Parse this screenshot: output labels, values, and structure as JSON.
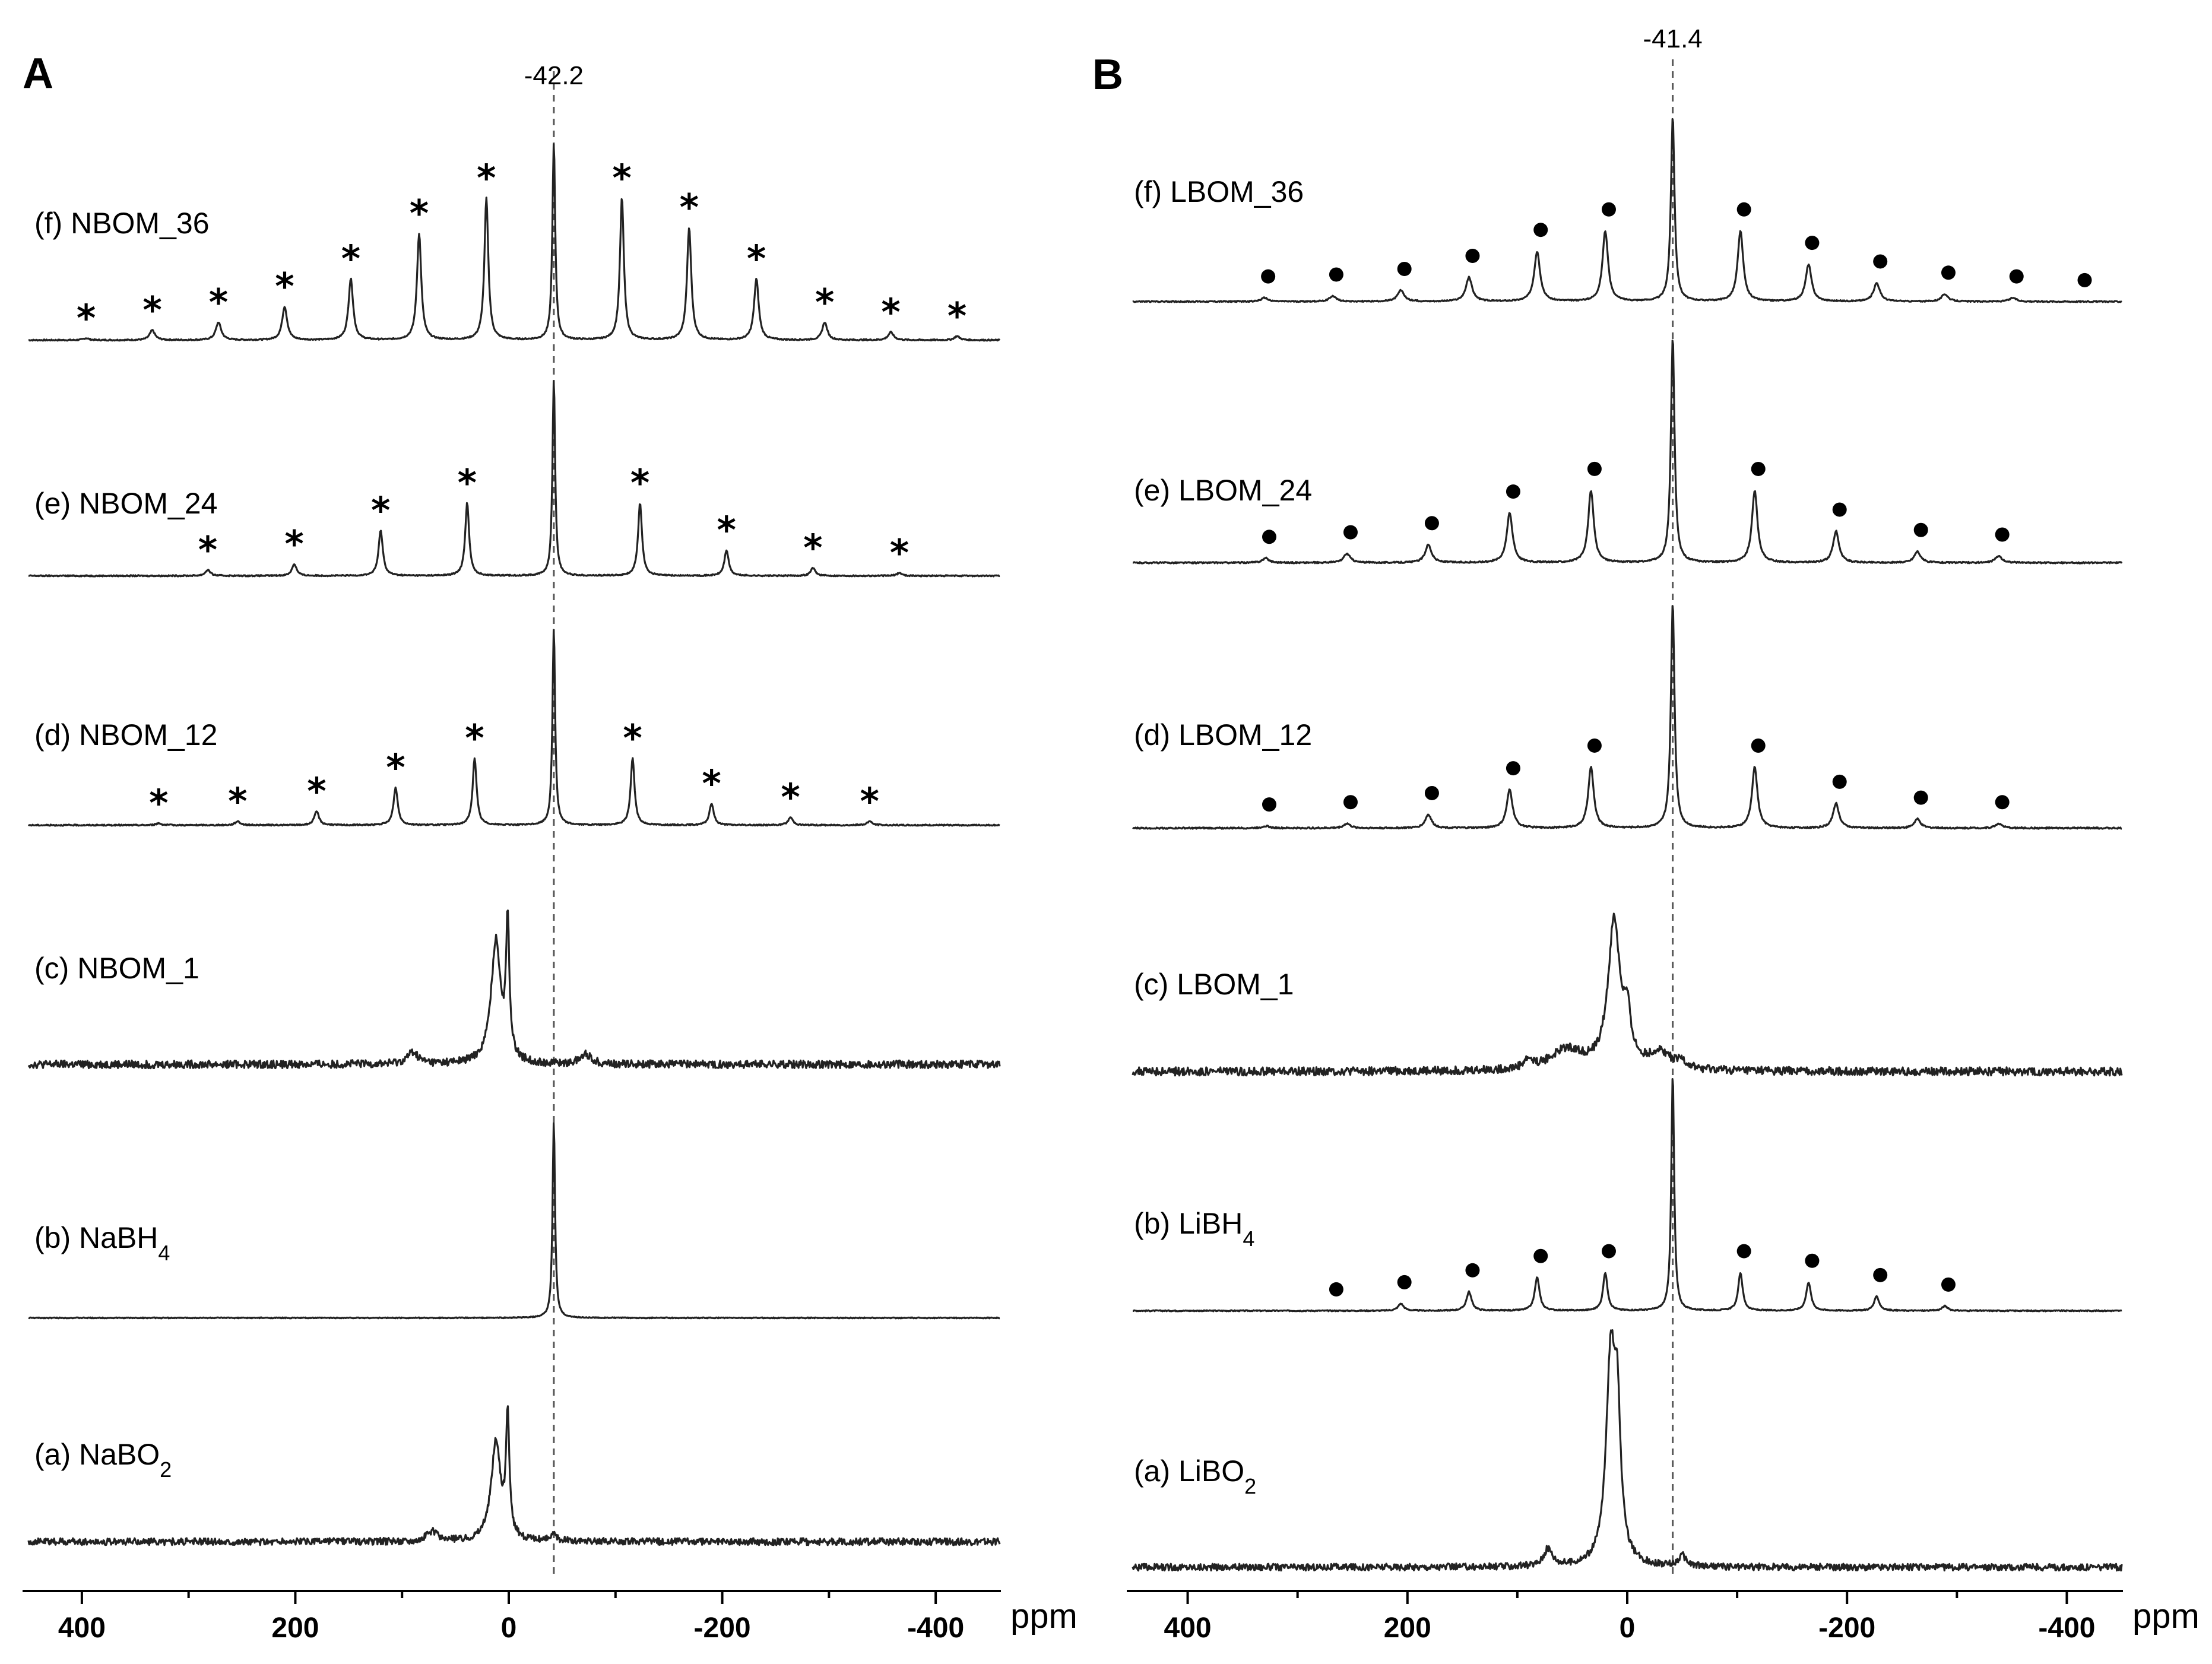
{
  "chart_data": [
    {
      "panel": "A",
      "type": "line",
      "xlabel": "ppm",
      "xlim": [
        450,
        -460
      ],
      "xticks": [
        400,
        200,
        0,
        -200,
        -400
      ],
      "reference_line": {
        "ppm": -42.2,
        "label": "-42.2"
      },
      "sideband_marker": "asterisk",
      "traces": [
        {
          "label": "(f) NBOM_36",
          "name_main": "(f) NBOM_36",
          "name_sub": "",
          "name_tail": "",
          "noise": 0.004,
          "peaks": [
            {
              "ppm": -42.2,
              "h": 1.0,
              "w": 1.6
            },
            {
              "ppm": 21,
              "h": 0.72,
              "w": 2.2
            },
            {
              "ppm": -106,
              "h": 0.72,
              "w": 2.2
            },
            {
              "ppm": 84,
              "h": 0.54,
              "w": 2.4
            },
            {
              "ppm": -169,
              "h": 0.57,
              "w": 2.4
            },
            {
              "ppm": 148,
              "h": 0.31,
              "w": 2.6
            },
            {
              "ppm": -232,
              "h": 0.31,
              "w": 2.6
            },
            {
              "ppm": 210,
              "h": 0.17,
              "w": 2.8
            },
            {
              "ppm": -296,
              "h": 0.09,
              "w": 2.8
            },
            {
              "ppm": 272,
              "h": 0.09,
              "w": 3.0
            },
            {
              "ppm": -358,
              "h": 0.04,
              "w": 3.0
            },
            {
              "ppm": 334,
              "h": 0.05,
              "w": 3.0
            },
            {
              "ppm": -420,
              "h": 0.02,
              "w": 3.0
            },
            {
              "ppm": 396,
              "h": 0.01,
              "w": 3.0
            }
          ],
          "markers": [
            396,
            334,
            272,
            210,
            148,
            84,
            21,
            -106,
            -169,
            -232,
            -296,
            -358,
            -420
          ]
        },
        {
          "label": "(e) NBOM_24",
          "name_main": "(e) NBOM_24",
          "name_sub": "",
          "name_tail": "",
          "noise": 0.004,
          "peaks": [
            {
              "ppm": -42.2,
              "h": 1.0,
              "w": 1.5
            },
            {
              "ppm": 39,
              "h": 0.37,
              "w": 2.2
            },
            {
              "ppm": -123,
              "h": 0.37,
              "w": 2.2
            },
            {
              "ppm": 120,
              "h": 0.23,
              "w": 2.4
            },
            {
              "ppm": -204,
              "h": 0.13,
              "w": 2.4
            },
            {
              "ppm": 201,
              "h": 0.06,
              "w": 2.6
            },
            {
              "ppm": -285,
              "h": 0.04,
              "w": 2.6
            },
            {
              "ppm": 282,
              "h": 0.03,
              "w": 2.8
            },
            {
              "ppm": -366,
              "h": 0.015,
              "w": 2.8
            }
          ],
          "markers": [
            282,
            201,
            120,
            39,
            -123,
            -204,
            -285,
            -366
          ]
        },
        {
          "label": "(d) NBOM_12",
          "name_main": "(d) NBOM_12",
          "name_sub": "",
          "name_tail": "",
          "noise": 0.004,
          "peaks": [
            {
              "ppm": -42.2,
              "h": 1.0,
              "w": 1.5
            },
            {
              "ppm": 32,
              "h": 0.34,
              "w": 2.2
            },
            {
              "ppm": -116,
              "h": 0.34,
              "w": 2.2
            },
            {
              "ppm": 106,
              "h": 0.19,
              "w": 2.4
            },
            {
              "ppm": -190,
              "h": 0.11,
              "w": 2.4
            },
            {
              "ppm": 180,
              "h": 0.07,
              "w": 2.6
            },
            {
              "ppm": -264,
              "h": 0.04,
              "w": 2.6
            },
            {
              "ppm": 254,
              "h": 0.02,
              "w": 2.8
            },
            {
              "ppm": -338,
              "h": 0.02,
              "w": 2.8
            },
            {
              "ppm": 328,
              "h": 0.01,
              "w": 2.8
            }
          ],
          "markers": [
            328,
            254,
            180,
            106,
            32,
            -116,
            -190,
            -264,
            -338
          ]
        },
        {
          "label": "(c) NBOM_1",
          "name_main": "(c) NBOM_1",
          "name_sub": "",
          "name_tail": "",
          "noise": 0.025,
          "peaks": [
            {
              "ppm": 12,
              "h": 0.62,
              "w": 5.5
            },
            {
              "ppm": 1,
              "h": 0.68,
              "w": 1.8
            },
            {
              "ppm": 90,
              "h": 0.06,
              "w": 6
            },
            {
              "ppm": -72,
              "h": 0.05,
              "w": 6
            }
          ],
          "markers": []
        },
        {
          "label": "(b) NaBH4",
          "name_main": "(b) NaBH",
          "name_sub": "4",
          "name_tail": "",
          "noise": 0.003,
          "peaks": [
            {
              "ppm": -42.2,
              "h": 1.0,
              "w": 1.4
            }
          ],
          "markers": []
        },
        {
          "label": "(a) NaBO2",
          "name_main": "(a) NaBO",
          "name_sub": "2",
          "name_tail": "",
          "noise": 0.022,
          "peaks": [
            {
              "ppm": 12,
              "h": 0.5,
              "w": 5.5
            },
            {
              "ppm": 1,
              "h": 0.6,
              "w": 1.8
            },
            {
              "ppm": 72,
              "h": 0.05,
              "w": 6
            },
            {
              "ppm": -42,
              "h": 0.03,
              "w": 4
            }
          ],
          "markers": []
        }
      ]
    },
    {
      "panel": "B",
      "type": "line",
      "xlabel": "ppm",
      "xlim": [
        450,
        -450
      ],
      "xticks": [
        400,
        200,
        0,
        -200,
        -400
      ],
      "reference_line": {
        "ppm": -41.4,
        "label": "-41.4"
      },
      "sideband_marker": "filled-circle",
      "traces": [
        {
          "label": "(f) LBOM_36",
          "name_main": "(f) LBOM_36",
          "name_sub": "",
          "name_tail": "",
          "noise": 0.004,
          "peaks": [
            {
              "ppm": -41.4,
              "h": 1.0,
              "w": 2.0
            },
            {
              "ppm": 20,
              "h": 0.38,
              "w": 3.0
            },
            {
              "ppm": -103,
              "h": 0.38,
              "w": 3.0
            },
            {
              "ppm": 82,
              "h": 0.27,
              "w": 3.2
            },
            {
              "ppm": -165,
              "h": 0.2,
              "w": 3.2
            },
            {
              "ppm": 144,
              "h": 0.13,
              "w": 3.4
            },
            {
              "ppm": -227,
              "h": 0.1,
              "w": 3.4
            },
            {
              "ppm": 206,
              "h": 0.06,
              "w": 3.6
            },
            {
              "ppm": -289,
              "h": 0.04,
              "w": 3.6
            },
            {
              "ppm": 268,
              "h": 0.03,
              "w": 3.6
            },
            {
              "ppm": -351,
              "h": 0.02,
              "w": 3.6
            },
            {
              "ppm": 330,
              "h": 0.02,
              "w": 3.6
            }
          ],
          "markers": [
            330,
            268,
            206,
            144,
            82,
            20,
            -103,
            -165,
            -227,
            -289,
            -351,
            -413
          ]
        },
        {
          "label": "(e) LBOM_24",
          "name_main": "(e) LBOM_24",
          "name_sub": "",
          "name_tail": "",
          "noise": 0.004,
          "peaks": [
            {
              "ppm": -41.4,
              "h": 1.0,
              "w": 2.0
            },
            {
              "ppm": 33,
              "h": 0.32,
              "w": 3.0
            },
            {
              "ppm": -116,
              "h": 0.32,
              "w": 3.0
            },
            {
              "ppm": 107,
              "h": 0.22,
              "w": 3.2
            },
            {
              "ppm": -190,
              "h": 0.14,
              "w": 3.2
            },
            {
              "ppm": 181,
              "h": 0.08,
              "w": 3.4
            },
            {
              "ppm": -264,
              "h": 0.05,
              "w": 3.4
            },
            {
              "ppm": 255,
              "h": 0.04,
              "w": 3.6
            },
            {
              "ppm": -338,
              "h": 0.03,
              "w": 3.6
            },
            {
              "ppm": 329,
              "h": 0.02,
              "w": 3.6
            }
          ],
          "markers": [
            329,
            255,
            181,
            107,
            33,
            -116,
            -190,
            -264,
            -338
          ]
        },
        {
          "label": "(d) LBOM_12",
          "name_main": "(d) LBOM_12",
          "name_sub": "",
          "name_tail": "",
          "noise": 0.004,
          "peaks": [
            {
              "ppm": -41.4,
              "h": 1.0,
              "w": 2.0
            },
            {
              "ppm": 33,
              "h": 0.27,
              "w": 3.0
            },
            {
              "ppm": -116,
              "h": 0.27,
              "w": 3.0
            },
            {
              "ppm": 107,
              "h": 0.17,
              "w": 3.2
            },
            {
              "ppm": -190,
              "h": 0.11,
              "w": 3.2
            },
            {
              "ppm": 181,
              "h": 0.06,
              "w": 3.4
            },
            {
              "ppm": -264,
              "h": 0.04,
              "w": 3.4
            },
            {
              "ppm": 255,
              "h": 0.02,
              "w": 3.6
            },
            {
              "ppm": -338,
              "h": 0.02,
              "w": 3.6
            },
            {
              "ppm": 329,
              "h": 0.01,
              "w": 3.6
            }
          ],
          "markers": [
            329,
            255,
            181,
            107,
            33,
            -116,
            -190,
            -264,
            -338
          ]
        },
        {
          "label": "(c) LBOM_1",
          "name_main": "(c) LBOM_1",
          "name_sub": "",
          "name_tail": "",
          "noise": 0.03,
          "peaks": [
            {
              "ppm": 12,
              "h": 0.85,
              "w": 6.5
            },
            {
              "ppm": 0,
              "h": 0.25,
              "w": 4
            },
            {
              "ppm": 55,
              "h": 0.12,
              "w": 18
            },
            {
              "ppm": 90,
              "h": 0.05,
              "w": 5
            },
            {
              "ppm": -30,
              "h": 0.1,
              "w": 12
            },
            {
              "ppm": -50,
              "h": 0.04,
              "w": 4
            }
          ],
          "markers": []
        },
        {
          "label": "(b) LiBH4",
          "name_main": "(b) LiBH",
          "name_sub": "4",
          "name_tail": "",
          "noise": 0.003,
          "peaks": [
            {
              "ppm": -41.4,
              "h": 1.0,
              "w": 1.6
            },
            {
              "ppm": 20,
              "h": 0.16,
              "w": 2.4
            },
            {
              "ppm": -103,
              "h": 0.16,
              "w": 2.4
            },
            {
              "ppm": 82,
              "h": 0.14,
              "w": 2.6
            },
            {
              "ppm": -165,
              "h": 0.12,
              "w": 2.6
            },
            {
              "ppm": 144,
              "h": 0.08,
              "w": 2.8
            },
            {
              "ppm": -227,
              "h": 0.06,
              "w": 2.8
            },
            {
              "ppm": 206,
              "h": 0.03,
              "w": 3.0
            },
            {
              "ppm": -289,
              "h": 0.02,
              "w": 3.0
            }
          ],
          "markers": [
            268,
            206,
            144,
            82,
            20,
            -103,
            -165,
            -227,
            -289
          ]
        },
        {
          "label": "(a) LiBO2",
          "name_main": "(a) LiBO",
          "name_sub": "2",
          "name_tail": "",
          "noise": 0.02,
          "peaks": [
            {
              "ppm": 15,
              "h": 0.95,
              "w": 5.0
            },
            {
              "ppm": 9,
              "h": 0.6,
              "w": 3.5
            },
            {
              "ppm": 72,
              "h": 0.08,
              "w": 5
            },
            {
              "ppm": -50,
              "h": 0.05,
              "w": 4
            }
          ],
          "markers": []
        }
      ]
    }
  ]
}
